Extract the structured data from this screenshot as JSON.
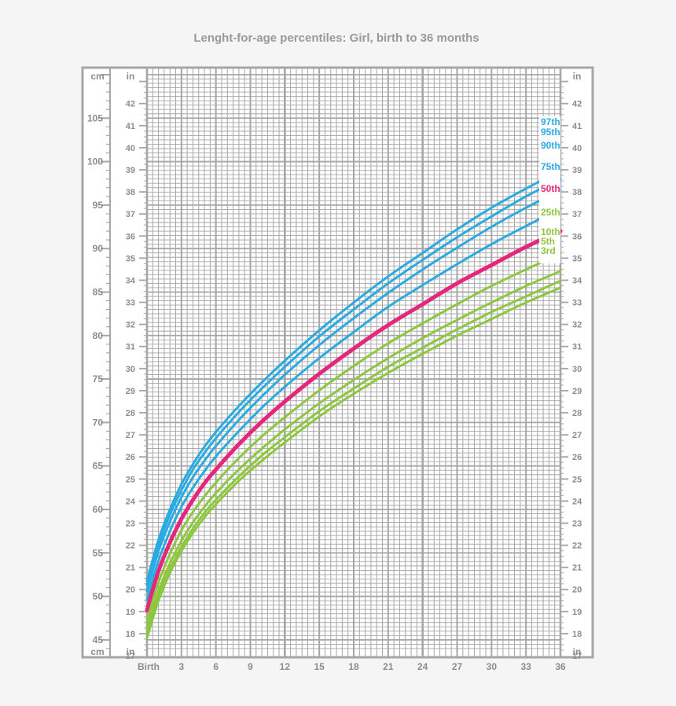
{
  "chart_data": {
    "type": "line",
    "title": "Lenght-for-age percentiles: Girl, birth to 36 months",
    "xlabel": "",
    "ylabel": "cm",
    "ylabel_secondary": "in",
    "xlim": [
      0,
      36
    ],
    "ylim_cm": [
      43,
      111
    ],
    "grid": true,
    "x_ticks": [
      {
        "value": 0,
        "label": "Birth"
      },
      {
        "value": 3,
        "label": "3"
      },
      {
        "value": 6,
        "label": "6"
      },
      {
        "value": 9,
        "label": "9"
      },
      {
        "value": 12,
        "label": "12"
      },
      {
        "value": 15,
        "label": "15"
      },
      {
        "value": 18,
        "label": "18"
      },
      {
        "value": 21,
        "label": "21"
      },
      {
        "value": 24,
        "label": "24"
      },
      {
        "value": 27,
        "label": "27"
      },
      {
        "value": 30,
        "label": "30"
      },
      {
        "value": 33,
        "label": "33"
      },
      {
        "value": 36,
        "label": "36"
      }
    ],
    "cm_ticks": [
      "45",
      "50",
      "55",
      "60",
      "65",
      "70",
      "75",
      "80",
      "85",
      "90",
      "95",
      "100",
      "105"
    ],
    "in_ticks": [
      "17",
      "18",
      "19",
      "20",
      "21",
      "22",
      "23",
      "24",
      "25",
      "26",
      "27",
      "28",
      "29",
      "30",
      "31",
      "32",
      "33",
      "34",
      "35",
      "36",
      "37",
      "38",
      "39",
      "40",
      "41",
      "42"
    ],
    "x": [
      0,
      1,
      2,
      3,
      4,
      5,
      6,
      8,
      10,
      12,
      15,
      18,
      21,
      24,
      27,
      30,
      33,
      36
    ],
    "series": [
      {
        "name": "97th",
        "color": "#29abe2",
        "width": 3,
        "values": [
          51.8,
          56.5,
          60.0,
          62.9,
          65.2,
          67.2,
          68.9,
          71.9,
          74.6,
          77.1,
          80.6,
          83.8,
          86.8,
          89.5,
          92.2,
          94.7,
          96.9,
          99.0
        ]
      },
      {
        "name": "95th",
        "color": "#29abe2",
        "width": 3,
        "values": [
          51.3,
          55.9,
          59.4,
          62.2,
          64.6,
          66.5,
          68.2,
          71.2,
          73.9,
          76.4,
          79.9,
          83.0,
          86.0,
          88.7,
          91.3,
          93.7,
          96.0,
          98.0
        ]
      },
      {
        "name": "90th",
        "color": "#29abe2",
        "width": 3,
        "values": [
          50.6,
          55.2,
          58.6,
          61.4,
          63.7,
          65.6,
          67.3,
          70.3,
          73.0,
          75.5,
          78.9,
          82.0,
          84.9,
          87.6,
          90.1,
          92.5,
          94.7,
          96.7
        ]
      },
      {
        "name": "75th",
        "color": "#29abe2",
        "width": 3,
        "values": [
          49.6,
          54.1,
          57.5,
          60.3,
          62.5,
          64.4,
          66.1,
          69.0,
          71.7,
          74.1,
          77.4,
          80.4,
          83.3,
          85.8,
          88.2,
          90.5,
          92.6,
          94.6
        ]
      },
      {
        "name": "50th",
        "color": "#e5267b",
        "width": 5,
        "values": [
          48.4,
          52.9,
          56.2,
          58.9,
          61.1,
          63.0,
          64.6,
          67.5,
          70.1,
          72.4,
          75.6,
          78.5,
          81.2,
          83.6,
          86.0,
          88.1,
          90.2,
          92.0
        ]
      },
      {
        "name": "25th",
        "color": "#8dc63f",
        "width": 3,
        "values": [
          47.2,
          51.6,
          54.9,
          57.6,
          59.7,
          61.5,
          63.1,
          65.9,
          68.4,
          70.6,
          73.7,
          76.5,
          79.1,
          81.4,
          83.6,
          85.7,
          87.6,
          89.4
        ]
      },
      {
        "name": "10th",
        "color": "#8dc63f",
        "width": 3,
        "values": [
          46.2,
          50.6,
          53.8,
          56.4,
          58.5,
          60.3,
          61.9,
          64.6,
          67.0,
          69.2,
          72.2,
          74.9,
          77.4,
          79.7,
          81.8,
          83.8,
          85.7,
          87.4
        ]
      },
      {
        "name": "5th",
        "color": "#8dc63f",
        "width": 3,
        "values": [
          45.6,
          49.9,
          53.1,
          55.7,
          57.8,
          59.6,
          61.1,
          63.8,
          66.2,
          68.3,
          71.3,
          73.9,
          76.4,
          78.6,
          80.7,
          82.7,
          84.5,
          86.3
        ]
      },
      {
        "name": "3rd",
        "color": "#8dc63f",
        "width": 3,
        "values": [
          45.2,
          49.5,
          52.7,
          55.2,
          57.3,
          59.1,
          60.6,
          63.3,
          65.6,
          67.7,
          70.7,
          73.3,
          75.7,
          77.9,
          80.0,
          81.9,
          83.8,
          85.5
        ]
      }
    ],
    "colors": {
      "background": "#f5f5f5",
      "plot_background": "#ffffff",
      "grid": "#a6a6a6",
      "frame": "#a6a6a6",
      "text": "#8c8c8c",
      "blue": "#29abe2",
      "pink": "#e5267b",
      "green": "#8dc63f"
    }
  }
}
